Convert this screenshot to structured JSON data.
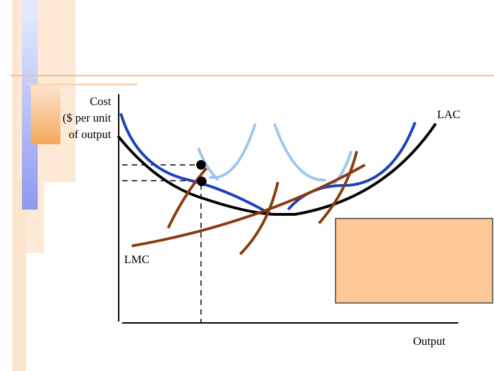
{
  "labels": {
    "y_axis": [
      "Cost",
      "($ per unit",
      "of output"
    ],
    "lac": "LAC",
    "lmc": "LMC",
    "x_axis": "Output"
  }
}
